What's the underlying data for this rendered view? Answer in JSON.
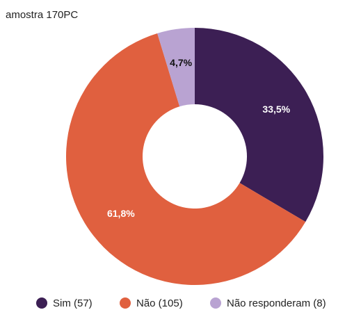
{
  "chart_data": {
    "type": "donut",
    "title": "amostra 170PC",
    "categories": [
      "Sim (57)",
      "Não (105)",
      "Não responderam (8)"
    ],
    "values": [
      33.5,
      61.8,
      4.7
    ],
    "value_labels": [
      "33,5%",
      "61,8%",
      "4,7%"
    ],
    "colors": [
      "#3c1f54",
      "#e0603f",
      "#b9a3d2"
    ],
    "legend": "bottom"
  }
}
